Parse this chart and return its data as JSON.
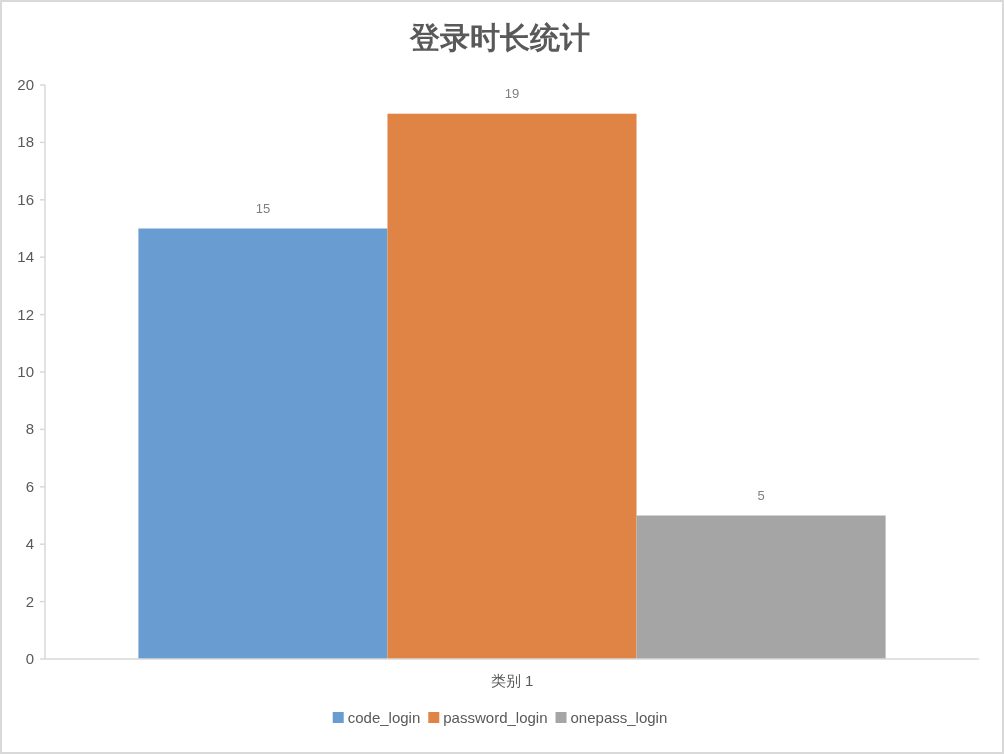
{
  "chart_data": {
    "type": "bar",
    "title": "登录时长统计",
    "categories": [
      "类别 1"
    ],
    "series": [
      {
        "name": "code_login",
        "color": "#699dd1",
        "values": [
          15
        ]
      },
      {
        "name": "password_login",
        "color": "#df8445",
        "values": [
          19
        ]
      },
      {
        "name": "onepass_login",
        "color": "#a5a5a5",
        "values": [
          5
        ]
      }
    ],
    "ylim": [
      0,
      20
    ],
    "yticks": [
      0,
      2,
      4,
      6,
      8,
      10,
      12,
      14,
      16,
      18,
      20
    ],
    "data_labels": true,
    "legend": "bottom"
  }
}
